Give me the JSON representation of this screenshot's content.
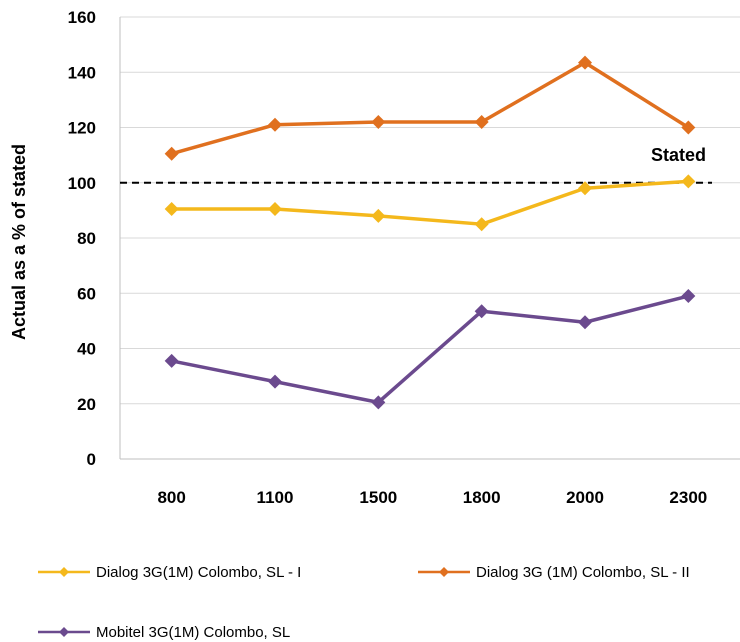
{
  "chart_data": {
    "type": "line",
    "title": "",
    "xlabel": "",
    "ylabel": "Actual as a % of stated",
    "x": [
      "800",
      "1100",
      "1500",
      "1800",
      "2000",
      "2300"
    ],
    "ylim": [
      0,
      160
    ],
    "yticks": [
      "0",
      "20",
      "40",
      "60",
      "80",
      "100",
      "120",
      "140",
      "160"
    ],
    "grid": "horizontal",
    "legend_position": "bottom",
    "reference_line": {
      "value": 100,
      "label": "Stated",
      "style": "dashed",
      "color": "#000000"
    },
    "series": [
      {
        "name": "Dialog 3G(1M) Colombo, SL - I",
        "color": "#F4B81C",
        "values": [
          90.5,
          90.5,
          88,
          85,
          98,
          100.5
        ]
      },
      {
        "name": "Dialog 3G (1M) Colombo, SL - II",
        "color": "#E0701F",
        "values": [
          110.5,
          121,
          122,
          122,
          143.5,
          120
        ]
      },
      {
        "name": "Mobitel 3G(1M) Colombo, SL",
        "color": "#6B4A8E",
        "values": [
          35.5,
          28,
          20.5,
          53.5,
          49.5,
          59
        ]
      }
    ]
  }
}
